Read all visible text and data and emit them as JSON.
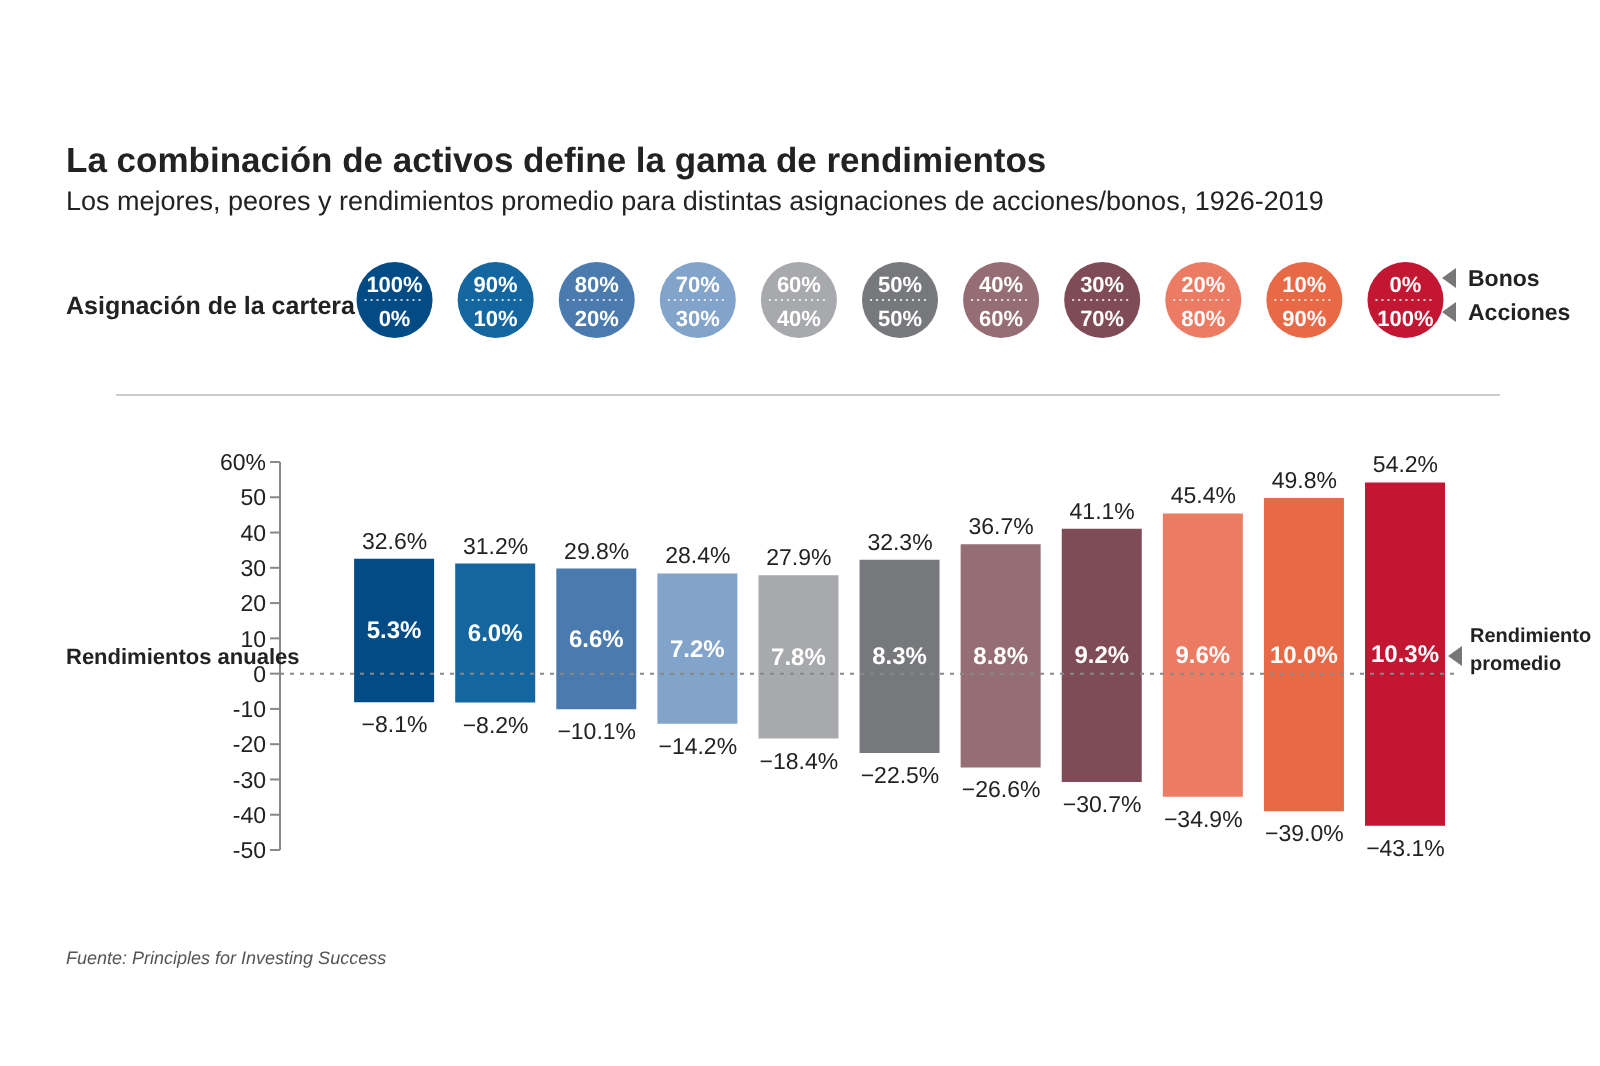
{
  "chart_data": {
    "type": "bar",
    "title": "La combinación de activos define la gama de rendimientos",
    "subtitle": "Los mejores, peores y rendimientos promedio para distintas asignaciones de acciones/bonos, 1926-2019",
    "ylabel": "Rendimientos anuales",
    "categories": [
      "100%\n0%",
      "90%\n10%",
      "80%\n20%",
      "70%\n30%",
      "60%\n40%",
      "50%\n50%",
      "40%\n60%",
      "30%\n70%",
      "20%\n80%",
      "10%\n90%",
      "0%\n100%"
    ],
    "base": [
      -8.1,
      -8.2,
      -10.1,
      -14.2,
      -18.4,
      -22.5,
      -26.6,
      -30.7,
      -34.9,
      -39.0,
      -43.1
    ],
    "values": [
      40.7,
      39.4,
      39.9,
      42.6,
      46.3,
      54.8,
      63.3,
      71.8,
      80.3,
      88.8,
      97.3
    ],
    "colors": [
      "#034b85",
      "#1466a0",
      "#4a7aae",
      "#83a4ca",
      "#a8a9ac",
      "#77787b",
      "#956d74",
      "#7f4b57",
      "#ec7b63",
      "#e76946",
      "#c21632"
    ],
    "ylim": [
      -50,
      60
    ],
    "yticks": [
      -50,
      -40,
      -30,
      -20,
      -10,
      0,
      10,
      20,
      30,
      40,
      50,
      {
        "value": 60,
        "label": "60%"
      }
    ],
    "grid": false,
    "ref_lines": [
      {
        "axis": "y",
        "value": 0,
        "color": "#888888",
        "line_style": "dotted"
      }
    ],
    "annotations": [
      "Asignación de la cartera",
      "Bonos",
      "Acciones",
      "Rendimiento promedio",
      "Fuente: Principles for Investing Success",
      "5.3%",
      "6.0%",
      "6.6%",
      "7.2%",
      "7.8%",
      "8.3%",
      "8.8%",
      "9.2%",
      "9.6%",
      "10.0%",
      "10.3%",
      {
        "text": "32.6%",
        "x": "100%\n0%",
        "y": 32.6
      },
      {
        "text": "−8.1%",
        "x": "100%\n0%",
        "y": -8.1
      },
      {
        "text": "31.2%",
        "x": "90%\n10%",
        "y": 31.2
      },
      {
        "text": "−8.2%",
        "x": "90%\n10%",
        "y": -8.2
      },
      {
        "text": "29.8%",
        "x": "80%\n20%",
        "y": 29.8
      },
      {
        "text": "−10.1%",
        "x": "80%\n20%",
        "y": -10.1
      },
      {
        "text": "28.4%",
        "x": "70%\n30%",
        "y": 28.4
      },
      {
        "text": "−14.2%",
        "x": "70%\n30%",
        "y": -14.2
      },
      {
        "text": "27.9%",
        "x": "60%\n40%",
        "y": 27.9
      },
      {
        "text": "−18.4%",
        "x": "60%\n40%",
        "y": -18.4
      },
      {
        "text": "32.3%",
        "x": "50%\n50%",
        "y": 32.3
      },
      {
        "text": "−22.5%",
        "x": "50%\n50%",
        "y": -22.5
      },
      {
        "text": "36.7%",
        "x": "40%\n60%",
        "y": 36.7
      },
      {
        "text": "−26.6%",
        "x": "40%\n60%",
        "y": -26.6
      },
      {
        "text": "41.1%",
        "x": "30%\n70%",
        "y": 41.1
      },
      {
        "text": "−30.7%",
        "x": "30%\n70%",
        "y": -30.7
      },
      {
        "text": "45.4%",
        "x": "20%\n80%",
        "y": 45.4
      },
      {
        "text": "−34.9%",
        "x": "20%\n80%",
        "y": -34.9
      },
      {
        "text": "49.8%",
        "x": "10%\n90%",
        "y": 49.8
      },
      {
        "text": "−39.0%",
        "x": "10%\n90%",
        "y": -39.0
      },
      {
        "text": "54.2%",
        "x": "0%\n100%",
        "y": 54.2
      },
      {
        "text": "−43.1%",
        "x": "0%\n100%",
        "y": -43.1
      }
    ]
  }
}
